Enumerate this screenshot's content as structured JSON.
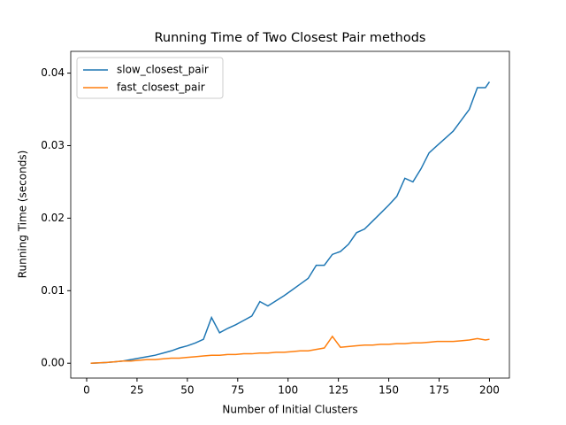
{
  "chart_data": {
    "type": "line",
    "title": "Running Time of Two Closest Pair methods",
    "x_label": "Number of Initial Clusters",
    "y_label": "Running Time (seconds)",
    "x": [
      2,
      6,
      10,
      14,
      18,
      22,
      26,
      30,
      34,
      38,
      42,
      46,
      50,
      54,
      58,
      62,
      66,
      70,
      74,
      78,
      82,
      86,
      90,
      94,
      98,
      102,
      106,
      110,
      114,
      118,
      122,
      126,
      130,
      134,
      138,
      142,
      146,
      150,
      154,
      158,
      162,
      166,
      170,
      174,
      178,
      182,
      186,
      190,
      194,
      198,
      200
    ],
    "series": [
      {
        "name": "slow_closest_pair",
        "color": "#1f77b4",
        "values": [
          0.0,
          4e-05,
          0.0001,
          0.0002,
          0.0003,
          0.0005,
          0.0007,
          0.0009,
          0.0011,
          0.0014,
          0.0017,
          0.0021,
          0.0024,
          0.0028,
          0.0033,
          0.0063,
          0.0042,
          0.0048,
          0.0053,
          0.0059,
          0.0065,
          0.0085,
          0.0079,
          0.0086,
          0.0093,
          0.0101,
          0.0109,
          0.0117,
          0.0135,
          0.0135,
          0.015,
          0.0154,
          0.0164,
          0.018,
          0.0185,
          0.0196,
          0.0207,
          0.0218,
          0.023,
          0.0255,
          0.025,
          0.0268,
          0.029,
          0.03,
          0.031,
          0.032,
          0.0335,
          0.035,
          0.038,
          0.038,
          0.0388
        ]
      },
      {
        "name": "fast_closest_pair",
        "color": "#ff7f0e",
        "values": [
          0.0,
          5e-05,
          0.0001,
          0.0002,
          0.0003,
          0.0003,
          0.0004,
          0.0005,
          0.0005,
          0.0006,
          0.0007,
          0.0007,
          0.0008,
          0.0009,
          0.001,
          0.0011,
          0.0011,
          0.0012,
          0.0012,
          0.0013,
          0.0013,
          0.0014,
          0.0014,
          0.0015,
          0.0015,
          0.0016,
          0.0017,
          0.0017,
          0.0019,
          0.0021,
          0.0037,
          0.0022,
          0.0023,
          0.0024,
          0.0025,
          0.0025,
          0.0026,
          0.0026,
          0.0027,
          0.0027,
          0.0028,
          0.0028,
          0.0029,
          0.003,
          0.003,
          0.003,
          0.0031,
          0.0032,
          0.0034,
          0.0032,
          0.0033
        ]
      }
    ],
    "xlim": [
      -7.9,
      209.9
    ],
    "ylim": [
      -0.00205,
      0.043
    ],
    "xticks": [
      0,
      25,
      50,
      75,
      100,
      125,
      150,
      175,
      200
    ],
    "yticks": [
      {
        "value": 0,
        "label": "0.00"
      },
      {
        "value": 0.01,
        "label": "0.01"
      },
      {
        "value": 0.02,
        "label": "0.02"
      },
      {
        "value": 0.03,
        "label": "0.03"
      },
      {
        "value": 0.04,
        "label": "0.04"
      }
    ],
    "legend": "upper left"
  }
}
